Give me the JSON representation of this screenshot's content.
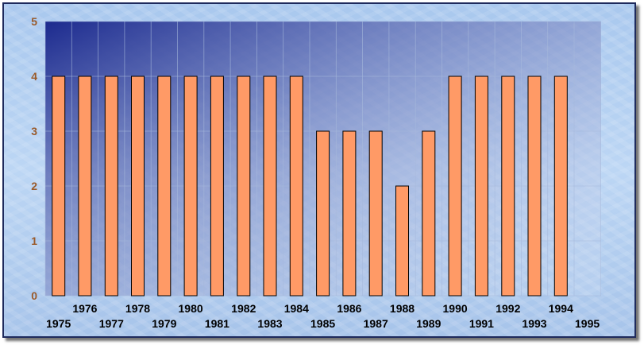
{
  "chart_data": {
    "type": "bar",
    "title": "",
    "xlabel": "",
    "ylabel": "",
    "categories": [
      "1975",
      "1976",
      "1977",
      "1978",
      "1979",
      "1980",
      "1981",
      "1982",
      "1983",
      "1984",
      "1985",
      "1986",
      "1987",
      "1988",
      "1989",
      "1990",
      "1991",
      "1992",
      "1993",
      "1994"
    ],
    "x_tick_labels": [
      "1975",
      "1976",
      "1977",
      "1978",
      "1979",
      "1980",
      "1981",
      "1982",
      "1983",
      "1984",
      "1985",
      "1986",
      "1987",
      "1988",
      "1989",
      "1990",
      "1991",
      "1992",
      "1993",
      "1994",
      "1995"
    ],
    "values": [
      4,
      4,
      4,
      4,
      4,
      4,
      4,
      4,
      4,
      4,
      3,
      3,
      3,
      2,
      3,
      4,
      4,
      4,
      4,
      4
    ],
    "ylim": [
      0,
      5
    ],
    "y_ticks": [
      "0",
      "1",
      "2",
      "3",
      "4",
      "5"
    ],
    "grid": true,
    "legend": "none",
    "colors": {
      "bar_fill": "#ff9a66",
      "bar_stroke": "#000000",
      "plot_gradient_start": "#1c2a8e",
      "plot_gradient_end": "#e2ecfb",
      "grid": "#a7b9dc",
      "y_tick_text": "#9a5a2a",
      "x_tick_text": "#000000"
    }
  }
}
